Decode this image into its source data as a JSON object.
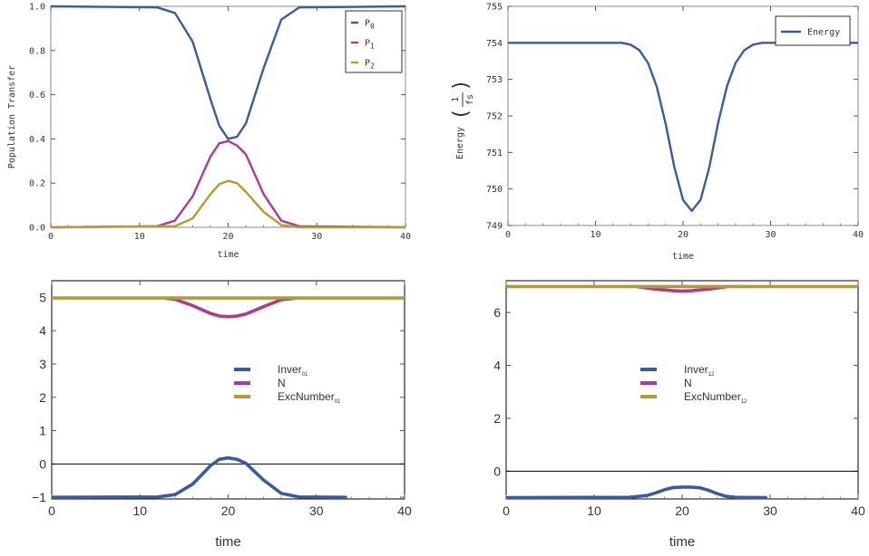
{
  "colors": {
    "blue": "#3a5ba0",
    "magenta": "#b23a8a",
    "gold": "#b59a33",
    "frame": "#888888",
    "axis": "#000000"
  },
  "chart_data": [
    {
      "type": "line",
      "title": "",
      "xlabel": "time",
      "ylabel": "Population Transfer",
      "xlim": [
        0,
        40
      ],
      "ylim": [
        0,
        1.0
      ],
      "xticks": [
        0,
        10,
        20,
        30,
        40
      ],
      "yticks": [
        0.0,
        0.2,
        0.4,
        0.6,
        0.8,
        1.0
      ],
      "ytick_labels": [
        "0.0",
        "0.2",
        "0.4",
        "0.6",
        "0.8",
        "1.0"
      ],
      "legend_position": "top-right",
      "series": [
        {
          "name": "P",
          "sub": "0",
          "color": "#3a5ba0",
          "x": [
            0,
            12,
            14,
            16,
            18,
            19,
            20,
            21,
            22,
            24,
            26,
            28,
            40
          ],
          "y": [
            1.0,
            0.995,
            0.97,
            0.84,
            0.58,
            0.46,
            0.4,
            0.41,
            0.47,
            0.72,
            0.94,
            0.995,
            1.0
          ]
        },
        {
          "name": "P",
          "sub": "1",
          "color": "#b23a8a",
          "x": [
            0,
            12,
            14,
            16,
            18,
            19,
            20,
            21,
            22,
            24,
            26,
            28,
            40
          ],
          "y": [
            0.0,
            0.005,
            0.03,
            0.14,
            0.32,
            0.38,
            0.39,
            0.37,
            0.33,
            0.15,
            0.03,
            0.005,
            0.0
          ]
        },
        {
          "name": "P",
          "sub": "2",
          "color": "#b59a33",
          "x": [
            0,
            14,
            16,
            18,
            19,
            20,
            21,
            22,
            24,
            26,
            28,
            40
          ],
          "y": [
            0.0,
            0.005,
            0.04,
            0.15,
            0.195,
            0.21,
            0.2,
            0.16,
            0.07,
            0.01,
            0.0,
            0.0
          ]
        }
      ]
    },
    {
      "type": "line",
      "title": "",
      "xlabel": "time",
      "ylabel": "Energy",
      "ylabel_unit_num": "1",
      "ylabel_unit_den": "fs",
      "xlim": [
        0,
        40
      ],
      "ylim": [
        749,
        755
      ],
      "xticks": [
        0,
        10,
        20,
        30,
        40
      ],
      "yticks": [
        749,
        750,
        751,
        752,
        753,
        754,
        755
      ],
      "ytick_labels": [
        "749",
        "750",
        "751",
        "752",
        "753",
        "754",
        "755"
      ],
      "legend_position": "top-right",
      "series": [
        {
          "name": "Energy",
          "sub": "",
          "color": "#3a5ba0",
          "x": [
            0,
            13,
            14,
            15,
            16,
            17,
            18,
            19,
            20,
            21,
            22,
            23,
            24,
            25,
            26,
            27,
            28,
            29,
            30,
            40
          ],
          "y": [
            754.0,
            754.0,
            753.95,
            753.8,
            753.45,
            752.8,
            751.8,
            750.6,
            749.7,
            749.4,
            749.7,
            750.6,
            751.8,
            752.8,
            753.45,
            753.8,
            753.95,
            754.0,
            754.0,
            754.0
          ]
        }
      ]
    },
    {
      "type": "line",
      "title": "",
      "xlabel": "time",
      "ylabel": "",
      "xlim": [
        0,
        40
      ],
      "ylim": [
        -1.05,
        5.5
      ],
      "xticks": [
        0,
        10,
        20,
        30,
        40
      ],
      "yticks": [
        -1,
        0,
        1,
        2,
        3,
        4,
        5
      ],
      "ytick_labels": [
        "−1",
        "0",
        "1",
        "2",
        "3",
        "4",
        "5"
      ],
      "legend_position": "center-right",
      "series": [
        {
          "name": "Inver",
          "sub": "01",
          "color": "#3a5ba0",
          "x": [
            0,
            12,
            14,
            16,
            18,
            19,
            20,
            21,
            22,
            24,
            26,
            28,
            33.3
          ],
          "y": [
            -1.0,
            -0.99,
            -0.92,
            -0.6,
            -0.05,
            0.14,
            0.18,
            0.14,
            0.02,
            -0.48,
            -0.88,
            -0.99,
            -1.0
          ]
        },
        {
          "name": "N",
          "sub": "",
          "color": "#b23a8a",
          "x": [
            13,
            14,
            16,
            18,
            19,
            20,
            21,
            22,
            24,
            26,
            27.5
          ],
          "y": [
            4.97,
            4.94,
            4.75,
            4.52,
            4.44,
            4.42,
            4.44,
            4.5,
            4.72,
            4.93,
            4.97
          ]
        },
        {
          "name": "ExcNumber",
          "sub": "01",
          "color": "#b59a33",
          "x": [
            0,
            40
          ],
          "y": [
            4.98,
            4.98
          ]
        }
      ]
    },
    {
      "type": "line",
      "title": "",
      "xlabel": "time",
      "ylabel": "",
      "xlim": [
        0,
        40
      ],
      "ylim": [
        -1.05,
        7.2
      ],
      "xticks": [
        0,
        10,
        20,
        30,
        40
      ],
      "yticks": [
        0,
        2,
        4,
        6
      ],
      "ytick_labels": [
        "0",
        "2",
        "4",
        "6"
      ],
      "legend_position": "center-right",
      "series": [
        {
          "name": "Inver",
          "sub": "12",
          "color": "#3a5ba0",
          "x": [
            0,
            14,
            16,
            17,
            18,
            19,
            20,
            21,
            22,
            23,
            24,
            25,
            26,
            29.5
          ],
          "y": [
            -1.0,
            -0.99,
            -0.92,
            -0.82,
            -0.7,
            -0.62,
            -0.6,
            -0.6,
            -0.63,
            -0.72,
            -0.85,
            -0.95,
            -0.99,
            -1.0
          ]
        },
        {
          "name": "N",
          "sub": "",
          "color": "#b23a8a",
          "x": [
            15,
            17,
            19,
            20,
            21,
            23,
            25
          ],
          "y": [
            6.97,
            6.88,
            6.82,
            6.81,
            6.82,
            6.88,
            6.97
          ]
        },
        {
          "name": "ExcNumber",
          "sub": "12",
          "color": "#b59a33",
          "x": [
            0,
            40
          ],
          "y": [
            6.98,
            6.98
          ]
        }
      ]
    }
  ]
}
